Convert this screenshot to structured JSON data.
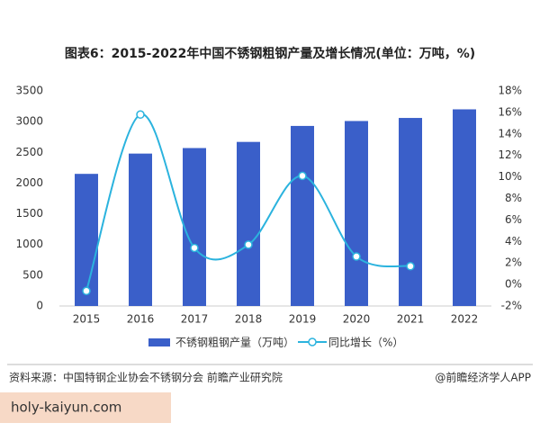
{
  "chart_data": {
    "type": "bar_line",
    "title": "图表6：2015-2022年中国不锈钢粗钢产量及增长情况(单位：万吨，%)",
    "categories": [
      "2015",
      "2016",
      "2017",
      "2018",
      "2019",
      "2020",
      "2021",
      "2022"
    ],
    "series": [
      {
        "name": "不锈钢粗钢产量（万吨）",
        "color": "#3a5fc9",
        "kind": "bar",
        "values": [
          2150,
          2480,
          2570,
          2670,
          2930,
          3010,
          3060,
          3200
        ]
      },
      {
        "name": "同比增长（%）",
        "color": "#2bb3de",
        "kind": "line",
        "axis": "y2",
        "values": [
          -0.6,
          15.8,
          3.4,
          3.7,
          10.1,
          2.6,
          1.7,
          null
        ]
      }
    ],
    "ylim": [
      0,
      3500
    ],
    "yticks": [
      0,
      500,
      1000,
      1500,
      2000,
      2500,
      3000,
      3500
    ],
    "y2lim": [
      -2,
      18
    ],
    "y2ticks": [
      {
        "value": -2,
        "label": "-2%"
      },
      {
        "value": 0,
        "label": "0%"
      },
      {
        "value": 2,
        "label": "2%"
      },
      {
        "value": 4,
        "label": "4%"
      },
      {
        "value": 6,
        "label": "6%"
      },
      {
        "value": 8,
        "label": "8%"
      },
      {
        "value": 10,
        "label": "10%"
      },
      {
        "value": 12,
        "label": "12%"
      },
      {
        "value": 14,
        "label": "14%"
      },
      {
        "value": 16,
        "label": "16%"
      },
      {
        "value": 18,
        "label": "18%"
      }
    ],
    "grid": false
  },
  "footer": {
    "source": "资料来源：中国特钢企业协会不锈钢分会 前瞻产业研究院",
    "credit": "@前瞻经济学人APP",
    "site": "holy-kaiyun.com"
  }
}
